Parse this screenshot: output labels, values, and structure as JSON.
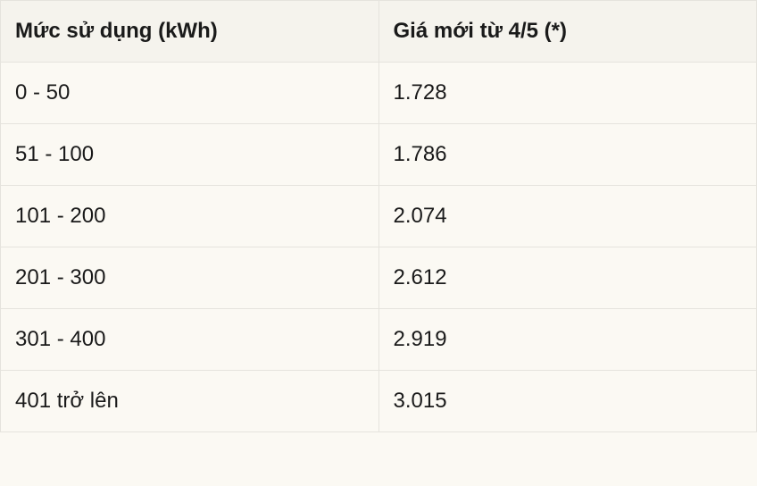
{
  "table": {
    "type": "table",
    "background_color": "#fbf9f3",
    "header_background_color": "#f5f3ed",
    "border_color": "#e5e3dd",
    "text_color": "#1a1a1a",
    "header_fontsize": 24,
    "cell_fontsize": 24,
    "header_fontweight": "700",
    "cell_fontweight": "400",
    "column_widths": [
      "50%",
      "50%"
    ],
    "columns": [
      "Mức sử dụng (kWh)",
      "Giá mới từ 4/5 (*)"
    ],
    "rows": [
      {
        "range": "0 - 50",
        "price": "1.728"
      },
      {
        "range": "51 - 100",
        "price": "1.786"
      },
      {
        "range": "101 - 200",
        "price": "2.074"
      },
      {
        "range": "201 - 300",
        "price": "2.612"
      },
      {
        "range": "301 - 400",
        "price": "2.919"
      },
      {
        "range": "401 trở lên",
        "price": "3.015"
      }
    ]
  }
}
